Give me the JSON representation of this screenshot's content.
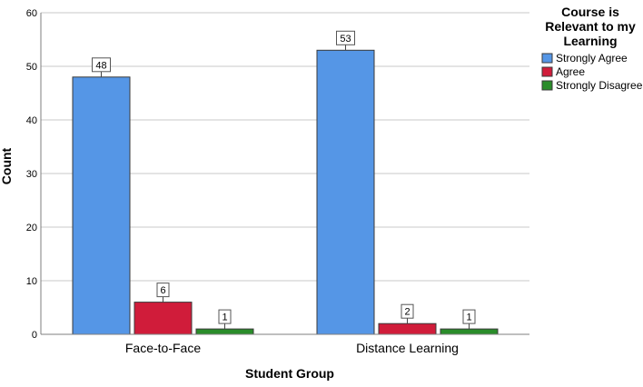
{
  "chart_data": {
    "type": "bar",
    "categories": [
      "Face-to-Face",
      "Distance Learning"
    ],
    "series": [
      {
        "name": "Strongly Agree",
        "values": [
          48,
          53
        ],
        "color": "#5596E6"
      },
      {
        "name": "Agree",
        "values": [
          6,
          2
        ],
        "color": "#D01C3A"
      },
      {
        "name": "Strongly Disagree",
        "values": [
          1,
          1
        ],
        "color": "#2A8C2A"
      }
    ],
    "xlabel": "Student Group",
    "ylabel": "Count",
    "ylim": [
      0,
      60
    ],
    "yticks": [
      0,
      10,
      20,
      30,
      40,
      50,
      60
    ],
    "grid": "horizontal",
    "legend": {
      "title_lines": [
        "Course is",
        "Relevant to my",
        "Learning"
      ],
      "placement": "right"
    },
    "data_labels": true
  }
}
